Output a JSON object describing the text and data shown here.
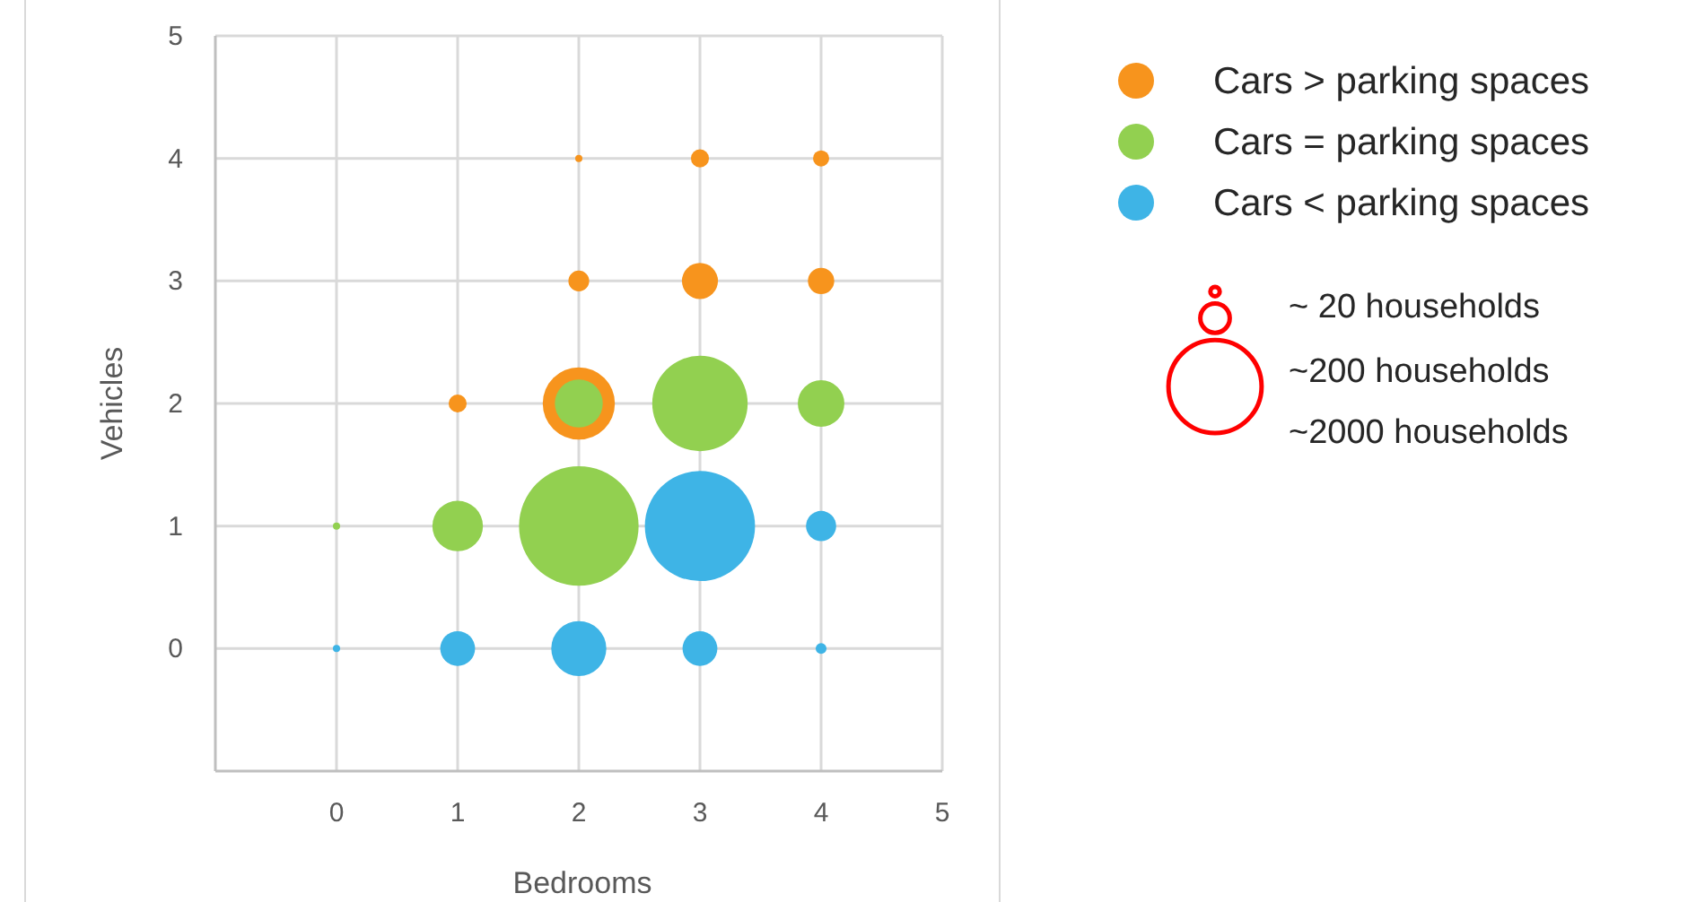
{
  "chart_data": {
    "type": "bubble",
    "xlabel": "Bedrooms",
    "ylabel": "Vehicles",
    "xlim": [
      -1,
      5
    ],
    "ylim": [
      -1,
      5
    ],
    "xticks": [
      0,
      1,
      2,
      3,
      4,
      5
    ],
    "yticks": [
      0,
      1,
      2,
      3,
      4,
      5
    ],
    "grid": true,
    "legend": "right",
    "marker": "circle",
    "size_legend": [
      {
        "value": 20,
        "label": "~ 20 households"
      },
      {
        "value": 200,
        "label": "~200 households"
      },
      {
        "value": 2000,
        "label": "~2000 households"
      }
    ],
    "series": [
      {
        "name": "Cars > parking spaces",
        "color": "#f7941d",
        "x": [
          2,
          3,
          4,
          2,
          3,
          4,
          1,
          2
        ],
        "values": [
          4,
          4,
          4,
          3,
          3,
          3,
          2,
          2
        ],
        "sizes": [
          12,
          75,
          60,
          100,
          300,
          160,
          75,
          1200
        ]
      },
      {
        "name": "Cars = parking spaces",
        "color": "#92d050",
        "x": [
          2,
          3,
          4,
          0,
          1,
          2
        ],
        "values": [
          2,
          2,
          2,
          1,
          1,
          1
        ],
        "sizes": [
          530,
          2100,
          500,
          12,
          590,
          3300
        ]
      },
      {
        "name": "Cars < parking spaces",
        "color": "#3eb4e6",
        "x": [
          3,
          4,
          0,
          1,
          2,
          3,
          4
        ],
        "values": [
          1,
          1,
          0,
          0,
          0,
          0,
          0
        ],
        "sizes": [
          2800,
          210,
          12,
          280,
          700,
          280,
          27
        ]
      }
    ]
  }
}
